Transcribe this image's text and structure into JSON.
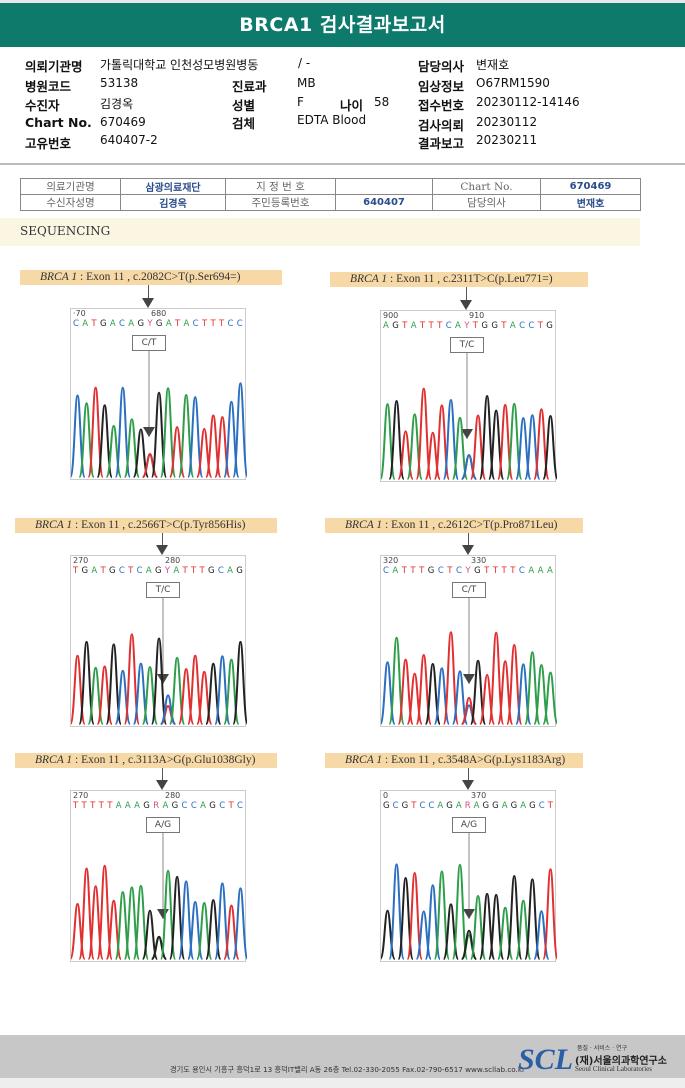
{
  "title": "BRCA1 검사결과보고서",
  "info": {
    "institution_label": "의뢰기관명",
    "institution": "가톨릭대학교 인천성모병원병동",
    "ward": "/ -",
    "hospital_code_label": "병원코드",
    "hospital_code": "53138",
    "patient_label": "수진자",
    "patient": "김경옥",
    "chart_label": "Chart No.",
    "chart": "670469",
    "unique_label": "고유번호",
    "unique": "640407-2",
    "dept_label": "진료과",
    "dept": "MB",
    "sex_label": "성별",
    "sex": "F",
    "age_label": "나이",
    "age": "58",
    "specimen_label": "검체",
    "specimen": "EDTA Blood",
    "doctor_label": "담당의사",
    "doctor": "변재호",
    "clinical_label": "임상정보",
    "clinical": "O67RM1590",
    "receipt_label": "접수번호",
    "receipt": "20230112-14146",
    "request_label": "검사의뢰",
    "request": "20230112",
    "report_label": "결과보고",
    "report": "20230211"
  },
  "scan_table": {
    "inst_label": "의료기관명",
    "inst": "삼광의료재단",
    "designated_label": "지 정 번 호",
    "designated": "",
    "chart_label": "Chart No.",
    "chart": "670469",
    "name_label": "수신자성명",
    "name": "김경옥",
    "id_label": "주민등록번호",
    "id": "640407",
    "doctor_label": "담당의사",
    "doctor": "변재호"
  },
  "section": "SEQUENCING",
  "panels": [
    {
      "gene": "BRCA 1",
      "desc": " : Exon 11 , c.2082C>T(p.Ser694=)",
      "n1": "·70",
      "n2": "680",
      "seq": "CATGACAGYGATACTTTCC",
      "call": "C/T",
      "alt": "CT"
    },
    {
      "gene": "BRCA 1",
      "desc": " : Exon 11 , c.2311T>C(p.Leu771=)",
      "n1": "900",
      "n2": "910",
      "seq": "AGTATTTCAYTGGTACCTG",
      "call": "T/C",
      "alt": "TC"
    },
    {
      "gene": "BRCA 1",
      "desc": " : Exon 11 , c.2566T>C(p.Tyr856His)",
      "n1": "270",
      "n2": "280",
      "seq": "TGATGCTCAGYATTTGCAG",
      "call": "T/C",
      "alt": "TC"
    },
    {
      "gene": "BRCA 1",
      "desc": " : Exon 11 , c.2612C>T(p.Pro871Leu)",
      "n1": "320",
      "n2": "330",
      "seq": "CATTTGCTCYGTTTTCAAA",
      "call": "C/T",
      "alt": "CT"
    },
    {
      "gene": "BRCA 1",
      "desc": " : Exon 11 , c.3113A>G(p.Glu1038Gly)",
      "n1": "270",
      "n2": "280",
      "seq": "TTTTTAAAGRAGCCAGCTC",
      "call": "A/G",
      "alt": "AG"
    },
    {
      "gene": "BRCA 1",
      "desc": " : Exon 11 , c.3548A>G(p.Lys1183Arg)",
      "n1": "0",
      "n2": "370",
      "seq": "GCGTCCAGARAGGAGAGCT",
      "call": "A/G",
      "alt": "AG"
    }
  ],
  "footer": {
    "address": "경기도 용인시 기흥구 흥덕1로 13 흥덕IT밸리 A동 26층  Tel.02-330-2055  Fax.02-790-6517  www.scllab.co.kr",
    "logo": "SCL",
    "motto": "품질 · 서비스 · 연구",
    "org_kr": "(재)서울의과학연구소",
    "org_en": "Seoul Clinical Laboratories"
  },
  "colors": {
    "header": "#0d7a6c",
    "A": "#2e9e4a",
    "C": "#2a6fc0",
    "G": "#222222",
    "T": "#e03030",
    "ambiguous": "#d0508a"
  }
}
